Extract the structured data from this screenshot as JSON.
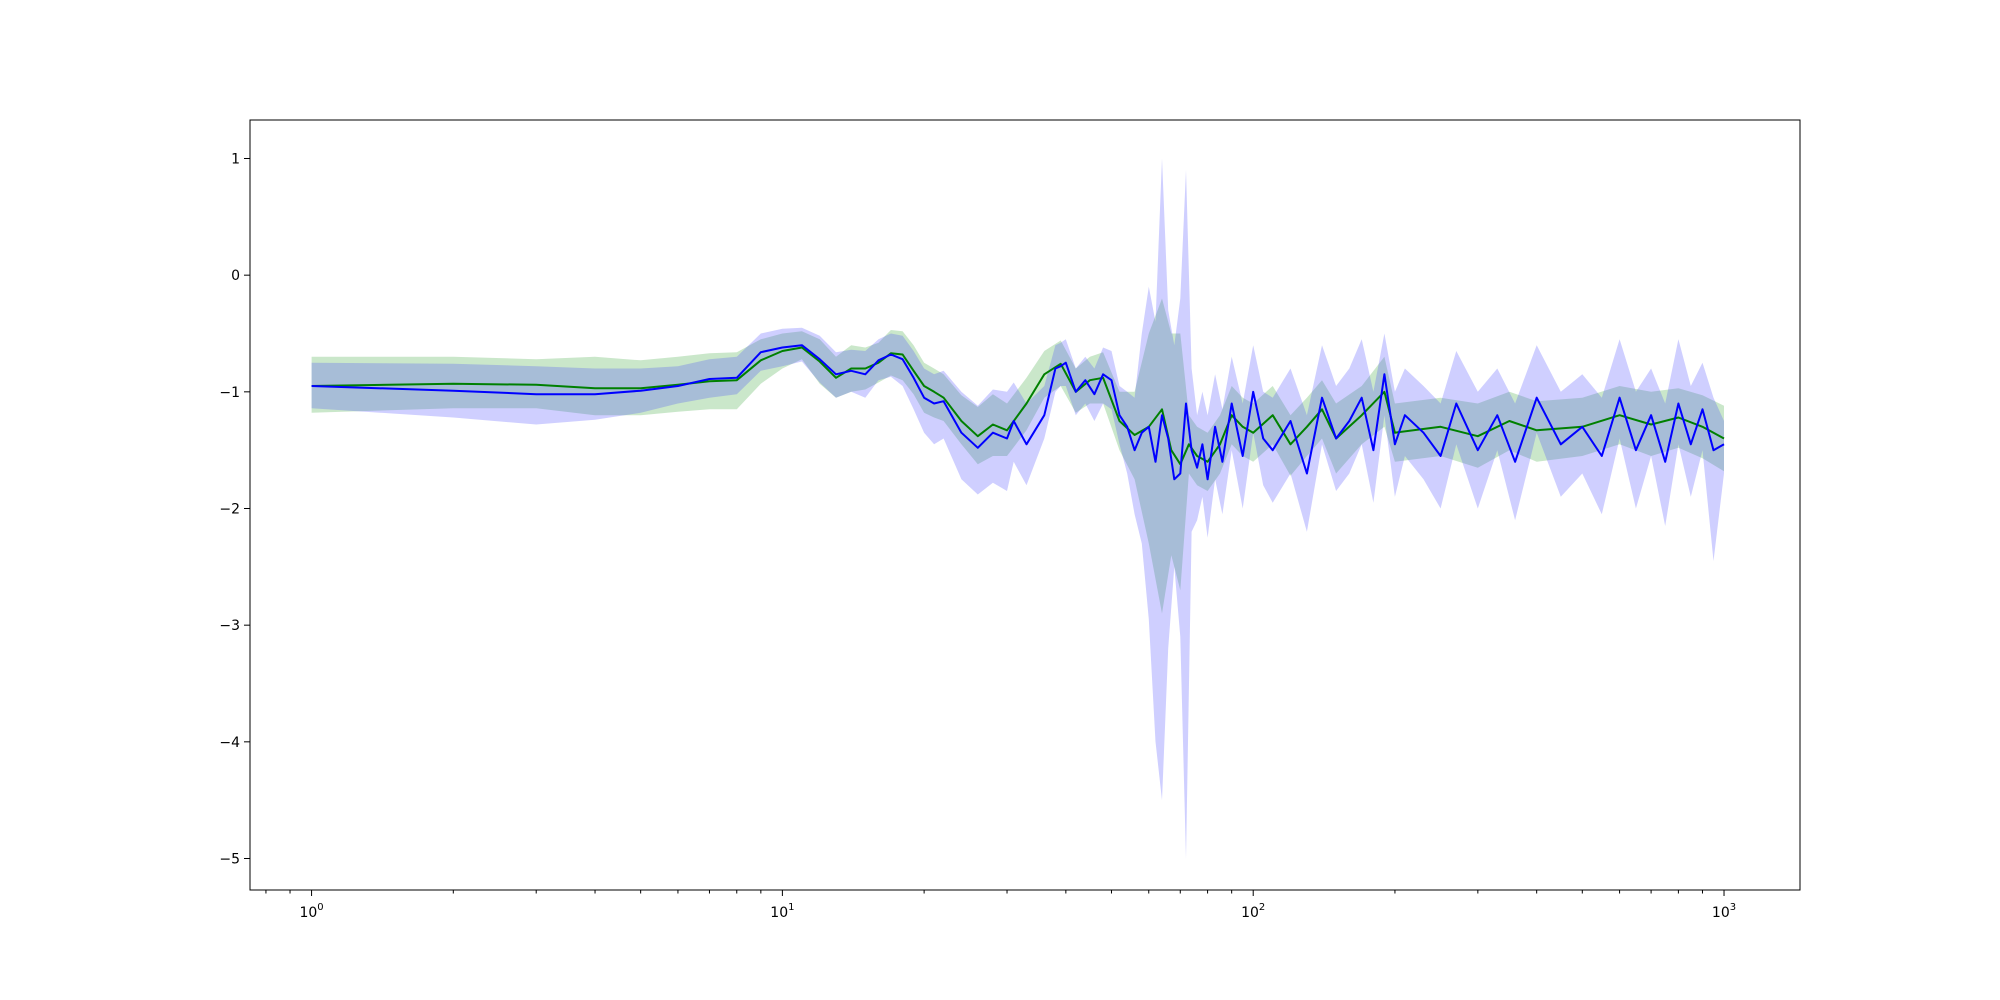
{
  "chart_data": {
    "type": "line",
    "title": "",
    "xlabel": "",
    "ylabel": "",
    "xscale": "log",
    "xlim": [
      0.74,
      1450
    ],
    "ylim": [
      -5.27,
      1.33
    ],
    "grid": false,
    "legend": "none",
    "x_ticks": [
      {
        "value": 1,
        "base": "10",
        "exp": "0"
      },
      {
        "value": 10,
        "base": "10",
        "exp": "1"
      },
      {
        "value": 100,
        "base": "10",
        "exp": "2"
      },
      {
        "value": 1000,
        "base": "10",
        "exp": "3"
      }
    ],
    "y_ticks": [
      {
        "value": 1,
        "label": "1"
      },
      {
        "value": 0,
        "label": "0"
      },
      {
        "value": -1,
        "label": "−1"
      },
      {
        "value": -2,
        "label": "−2"
      },
      {
        "value": -3,
        "label": "−3"
      },
      {
        "value": -4,
        "label": "−4"
      },
      {
        "value": -5,
        "label": "−5"
      }
    ],
    "series": [
      {
        "color": "#008000",
        "band_color": "#2ca02c",
        "band_opacity": 0.25,
        "x": [
          1,
          2,
          3,
          4,
          5,
          6,
          7,
          8,
          9,
          10,
          11,
          12,
          13,
          14,
          15,
          16,
          17,
          18,
          19,
          20,
          21,
          22,
          24,
          26,
          28,
          30,
          33,
          36,
          39,
          42,
          45,
          48,
          52,
          56,
          60,
          64,
          67,
          70,
          73,
          76,
          80,
          85,
          90,
          95,
          100,
          110,
          120,
          130,
          140,
          150,
          170,
          190,
          200,
          250,
          300,
          350,
          400,
          500,
          600,
          700,
          800,
          900,
          1000
        ],
        "y": [
          -0.95,
          -0.93,
          -0.94,
          -0.97,
          -0.97,
          -0.94,
          -0.91,
          -0.9,
          -0.73,
          -0.65,
          -0.62,
          -0.74,
          -0.88,
          -0.8,
          -0.8,
          -0.75,
          -0.67,
          -0.68,
          -0.82,
          -0.95,
          -1.0,
          -1.05,
          -1.25,
          -1.38,
          -1.28,
          -1.33,
          -1.1,
          -0.85,
          -0.76,
          -1.0,
          -0.9,
          -0.88,
          -1.25,
          -1.37,
          -1.3,
          -1.15,
          -1.5,
          -1.62,
          -1.45,
          -1.55,
          -1.6,
          -1.45,
          -1.2,
          -1.3,
          -1.35,
          -1.2,
          -1.45,
          -1.3,
          -1.15,
          -1.4,
          -1.2,
          -1.0,
          -1.35,
          -1.3,
          -1.38,
          -1.25,
          -1.33,
          -1.3,
          -1.2,
          -1.28,
          -1.22,
          -1.3,
          -1.4
        ],
        "lower": [
          -1.18,
          -1.14,
          -1.14,
          -1.2,
          -1.2,
          -1.17,
          -1.15,
          -1.15,
          -0.93,
          -0.8,
          -0.72,
          -0.93,
          -1.05,
          -1.0,
          -0.98,
          -0.92,
          -0.86,
          -0.9,
          -1.02,
          -1.18,
          -1.22,
          -1.25,
          -1.45,
          -1.62,
          -1.55,
          -1.55,
          -1.33,
          -1.05,
          -0.95,
          -1.18,
          -1.1,
          -1.1,
          -1.5,
          -1.75,
          -2.3,
          -2.9,
          -2.4,
          -2.7,
          -1.7,
          -1.8,
          -1.85,
          -1.7,
          -1.45,
          -1.55,
          -1.6,
          -1.45,
          -1.72,
          -1.55,
          -1.4,
          -1.7,
          -1.45,
          -1.3,
          -1.6,
          -1.55,
          -1.65,
          -1.5,
          -1.6,
          -1.55,
          -1.45,
          -1.55,
          -1.48,
          -1.57,
          -1.68
        ],
        "upper": [
          -0.7,
          -0.7,
          -0.72,
          -0.7,
          -0.73,
          -0.7,
          -0.67,
          -0.66,
          -0.55,
          -0.5,
          -0.48,
          -0.55,
          -0.7,
          -0.6,
          -0.62,
          -0.58,
          -0.47,
          -0.48,
          -0.6,
          -0.75,
          -0.8,
          -0.85,
          -1.03,
          -1.13,
          -1.02,
          -1.1,
          -0.88,
          -0.65,
          -0.56,
          -0.8,
          -0.7,
          -0.66,
          -1.0,
          -1.0,
          -0.5,
          -0.2,
          -0.5,
          -0.5,
          -1.2,
          -1.3,
          -1.35,
          -1.2,
          -0.95,
          -1.05,
          -1.1,
          -0.95,
          -1.2,
          -1.05,
          -0.9,
          -1.1,
          -0.95,
          -0.7,
          -1.1,
          -1.05,
          -1.1,
          -1.0,
          -1.08,
          -1.05,
          -0.95,
          -1.0,
          -0.97,
          -1.03,
          -1.12
        ]
      },
      {
        "color": "#0000ff",
        "band_color": "#3f3fff",
        "band_opacity": 0.25,
        "x": [
          1,
          2,
          3,
          4,
          5,
          6,
          7,
          8,
          9,
          10,
          11,
          12,
          13,
          14,
          15,
          16,
          17,
          18,
          19,
          20,
          21,
          22,
          24,
          26,
          28,
          30,
          31,
          33,
          36,
          38,
          39,
          40,
          42,
          44,
          46,
          48,
          50,
          52,
          54,
          56,
          58,
          60,
          62,
          64,
          66,
          68,
          70,
          72,
          74,
          76,
          78,
          80,
          83,
          86,
          90,
          95,
          100,
          105,
          110,
          120,
          130,
          140,
          150,
          160,
          170,
          180,
          190,
          200,
          210,
          230,
          250,
          270,
          300,
          330,
          360,
          400,
          450,
          500,
          550,
          600,
          650,
          700,
          750,
          800,
          850,
          900,
          950,
          1000
        ],
        "y": [
          -0.95,
          -0.99,
          -1.02,
          -1.02,
          -0.99,
          -0.95,
          -0.89,
          -0.88,
          -0.66,
          -0.62,
          -0.6,
          -0.72,
          -0.85,
          -0.82,
          -0.85,
          -0.73,
          -0.68,
          -0.72,
          -0.88,
          -1.05,
          -1.1,
          -1.08,
          -1.35,
          -1.48,
          -1.35,
          -1.4,
          -1.25,
          -1.45,
          -1.2,
          -0.8,
          -0.78,
          -0.75,
          -1.0,
          -0.9,
          -1.02,
          -0.85,
          -0.9,
          -1.2,
          -1.3,
          -1.5,
          -1.35,
          -1.3,
          -1.6,
          -1.2,
          -1.4,
          -1.75,
          -1.7,
          -1.1,
          -1.5,
          -1.65,
          -1.45,
          -1.75,
          -1.3,
          -1.6,
          -1.1,
          -1.55,
          -1.0,
          -1.4,
          -1.5,
          -1.25,
          -1.7,
          -1.05,
          -1.4,
          -1.25,
          -1.05,
          -1.5,
          -0.85,
          -1.45,
          -1.2,
          -1.35,
          -1.55,
          -1.1,
          -1.5,
          -1.2,
          -1.6,
          -1.05,
          -1.45,
          -1.3,
          -1.55,
          -1.05,
          -1.5,
          -1.2,
          -1.6,
          -1.1,
          -1.45,
          -1.15,
          -1.5,
          -1.45
        ],
        "lower": [
          -1.14,
          -1.22,
          -1.28,
          -1.24,
          -1.18,
          -1.1,
          -1.05,
          -1.02,
          -0.82,
          -0.78,
          -0.74,
          -0.92,
          -1.05,
          -1.0,
          -1.05,
          -0.9,
          -0.87,
          -0.95,
          -1.15,
          -1.35,
          -1.45,
          -1.4,
          -1.75,
          -1.88,
          -1.78,
          -1.85,
          -1.6,
          -1.8,
          -1.4,
          -1.0,
          -0.95,
          -0.95,
          -1.2,
          -1.1,
          -1.25,
          -1.1,
          -1.15,
          -1.45,
          -1.7,
          -2.05,
          -2.3,
          -2.95,
          -4.0,
          -4.5,
          -3.2,
          -2.5,
          -3.1,
          -5.0,
          -2.2,
          -2.1,
          -1.9,
          -2.25,
          -1.75,
          -2.05,
          -1.5,
          -2.0,
          -1.35,
          -1.8,
          -1.95,
          -1.7,
          -2.2,
          -1.45,
          -1.85,
          -1.7,
          -1.45,
          -1.95,
          -1.2,
          -1.9,
          -1.55,
          -1.75,
          -2.0,
          -1.45,
          -2.0,
          -1.5,
          -2.1,
          -1.35,
          -1.9,
          -1.7,
          -2.05,
          -1.4,
          -2.0,
          -1.55,
          -2.15,
          -1.45,
          -1.9,
          -1.5,
          -2.45,
          -1.7
        ],
        "upper": [
          -0.75,
          -0.76,
          -0.78,
          -0.8,
          -0.8,
          -0.78,
          -0.72,
          -0.7,
          -0.5,
          -0.46,
          -0.45,
          -0.52,
          -0.66,
          -0.64,
          -0.65,
          -0.55,
          -0.5,
          -0.52,
          -0.65,
          -0.8,
          -0.85,
          -0.82,
          -1.0,
          -1.12,
          -0.98,
          -1.0,
          -0.92,
          -1.1,
          -0.95,
          -0.6,
          -0.58,
          -0.55,
          -0.8,
          -0.7,
          -0.8,
          -0.62,
          -0.65,
          -0.95,
          -1.0,
          -1.05,
          -0.5,
          -0.1,
          -0.4,
          1.0,
          -0.3,
          -0.6,
          -0.2,
          0.9,
          -0.8,
          -1.2,
          -1.0,
          -1.2,
          -0.85,
          -1.15,
          -0.7,
          -1.1,
          -0.6,
          -1.0,
          -1.05,
          -0.8,
          -1.2,
          -0.6,
          -0.95,
          -0.8,
          -0.55,
          -1.0,
          -0.5,
          -1.0,
          -0.8,
          -0.95,
          -1.1,
          -0.65,
          -1.0,
          -0.8,
          -1.1,
          -0.6,
          -1.0,
          -0.85,
          -1.05,
          -0.55,
          -1.0,
          -0.8,
          -1.1,
          -0.55,
          -0.95,
          -0.75,
          -1.05,
          -1.25
        ]
      }
    ]
  }
}
